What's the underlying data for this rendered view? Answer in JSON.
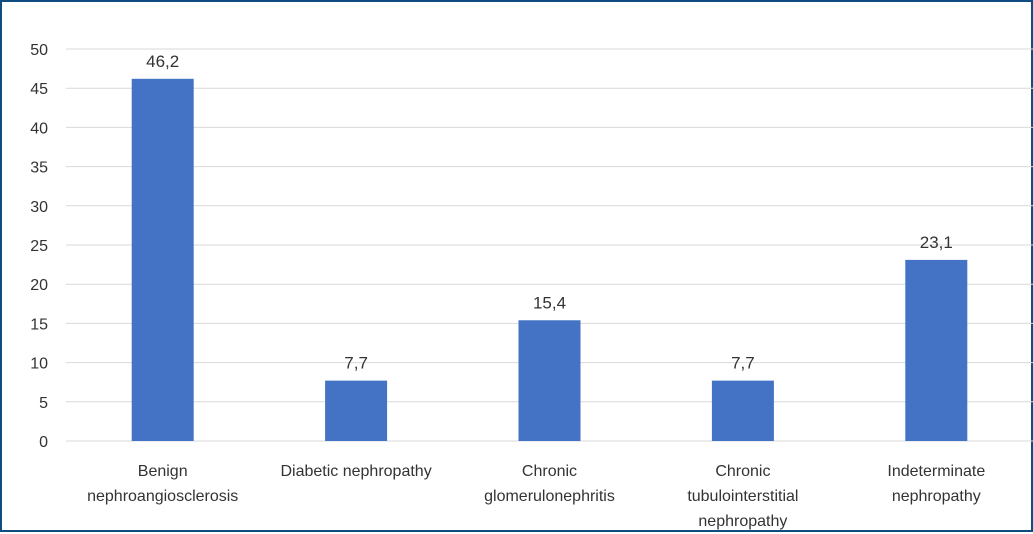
{
  "chart_data": {
    "type": "bar",
    "title": "",
    "xlabel": "",
    "ylabel": "",
    "categories": [
      [
        "Benign",
        "nephroangiosclerosis"
      ],
      [
        "Diabetic nephropathy"
      ],
      [
        "Chronic",
        "glomerulonephritis"
      ],
      [
        "Chronic",
        "tubulointerstitial",
        "nephropathy"
      ],
      [
        "Indeterminate",
        "nephropathy"
      ]
    ],
    "values": [
      46.2,
      7.7,
      15.4,
      7.7,
      23.1
    ],
    "data_labels": [
      "46,2",
      "7,7",
      "15,4",
      "7,7",
      "23,1"
    ],
    "ylim": [
      0,
      50
    ],
    "yticks": [
      0,
      5,
      10,
      15,
      20,
      25,
      30,
      35,
      40,
      45,
      50
    ],
    "ytick_labels": [
      "0",
      "5",
      "10",
      "15",
      "20",
      "25",
      "30",
      "35",
      "40",
      "45",
      "50"
    ],
    "grid": true,
    "legend": "none",
    "colors": {
      "bar": "#4472c4",
      "grid": "#d9d9d9",
      "frame": "#0f4c81"
    }
  }
}
